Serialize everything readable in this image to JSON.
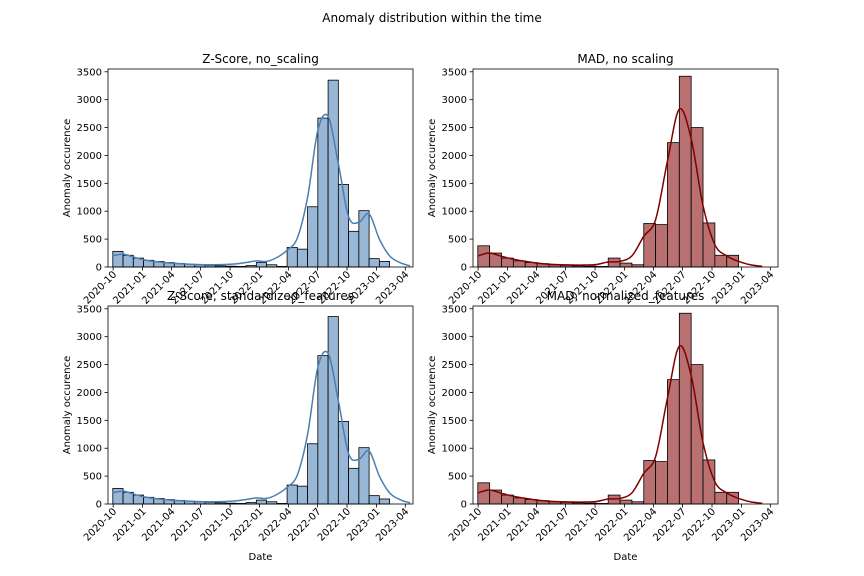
{
  "figure": {
    "suptitle": "Anomaly distribution within the time"
  },
  "chart_data": [
    {
      "type": "bar",
      "title": "Z-Score, no_scaling",
      "xlabel": "",
      "ylabel": "Anomaly occurence",
      "x_range": [
        "2020-09-15",
        "2023-04-25"
      ],
      "ylim": [
        0,
        3550
      ],
      "yticks": [
        0,
        500,
        1000,
        1500,
        2000,
        2500,
        3000,
        3500
      ],
      "xticks": [
        "2020-10",
        "2021-01",
        "2021-04",
        "2021-07",
        "2021-10",
        "2022-01",
        "2022-04",
        "2022-07",
        "2022-10",
        "2023-01",
        "2023-04"
      ],
      "bin_edges": [
        "2020-09-30",
        "2020-11-01",
        "2020-12-03",
        "2021-01-04",
        "2021-02-05",
        "2021-03-09",
        "2021-04-10",
        "2021-05-12",
        "2021-06-13",
        "2021-07-15",
        "2021-08-16",
        "2021-09-17",
        "2021-10-19",
        "2021-11-20",
        "2021-12-22",
        "2022-01-23",
        "2022-02-24",
        "2022-03-28",
        "2022-04-29",
        "2022-05-31",
        "2022-07-02",
        "2022-08-03",
        "2022-09-04",
        "2022-10-06",
        "2022-11-07",
        "2022-12-09",
        "2023-01-10",
        "2023-02-11",
        "2023-03-15",
        "2023-04-16"
      ],
      "values": [
        280,
        210,
        160,
        120,
        100,
        80,
        65,
        50,
        40,
        30,
        20,
        15,
        10,
        25,
        80,
        40,
        10,
        350,
        320,
        1080,
        2670,
        3350,
        1480,
        640,
        1010,
        150,
        100,
        0,
        0
      ],
      "kde": [
        200,
        230,
        180,
        130,
        100,
        80,
        65,
        55,
        45,
        40,
        40,
        45,
        55,
        80,
        110,
        100,
        170,
        300,
        520,
        1250,
        2450,
        2700,
        1850,
        900,
        800,
        950,
        500,
        200,
        80,
        20
      ],
      "color": "#4a7fb0",
      "fill": "#98b7d6"
    },
    {
      "type": "bar",
      "title": "MAD, no scaling",
      "xlabel": "",
      "ylabel": "Anomaly occurence",
      "x_range": [
        "2020-09-15",
        "2023-04-25"
      ],
      "ylim": [
        0,
        3550
      ],
      "yticks": [
        0,
        500,
        1000,
        1500,
        2000,
        2500,
        3000,
        3500
      ],
      "xticks": [
        "2020-10",
        "2021-01",
        "2021-04",
        "2021-07",
        "2021-10",
        "2022-01",
        "2022-04",
        "2022-07",
        "2022-10",
        "2023-01",
        "2023-04"
      ],
      "bin_edges": [
        "2020-09-30",
        "2020-11-06",
        "2020-12-13",
        "2021-01-19",
        "2021-02-25",
        "2021-04-03",
        "2021-05-10",
        "2021-06-16",
        "2021-07-23",
        "2021-08-29",
        "2021-10-05",
        "2021-11-11",
        "2021-12-18",
        "2022-01-24",
        "2022-03-02",
        "2022-04-08",
        "2022-05-15",
        "2022-06-21",
        "2022-07-28",
        "2022-09-03",
        "2022-10-10",
        "2022-11-16",
        "2022-12-23",
        "2023-01-29",
        "2023-03-07"
      ],
      "values": [
        380,
        250,
        160,
        110,
        80,
        60,
        40,
        30,
        20,
        15,
        10,
        160,
        70,
        40,
        780,
        760,
        2230,
        3420,
        2500,
        790,
        210,
        210,
        0,
        0
      ],
      "kde": [
        200,
        250,
        190,
        140,
        100,
        70,
        50,
        40,
        35,
        35,
        45,
        90,
        100,
        200,
        550,
        850,
        1900,
        2830,
        2300,
        1100,
        400,
        200,
        100,
        40,
        10
      ],
      "color": "#800000",
      "fill": "#b87070"
    },
    {
      "type": "bar",
      "title": "Z-Score, standardized_features",
      "xlabel": "Date",
      "ylabel": "Anomaly occurence",
      "x_range": [
        "2020-09-15",
        "2023-04-25"
      ],
      "ylim": [
        0,
        3550
      ],
      "yticks": [
        0,
        500,
        1000,
        1500,
        2000,
        2500,
        3000,
        3500
      ],
      "xticks": [
        "2020-10",
        "2021-01",
        "2021-04",
        "2021-07",
        "2021-10",
        "2022-01",
        "2022-04",
        "2022-07",
        "2022-10",
        "2023-01",
        "2023-04"
      ],
      "bin_edges": [
        "2020-09-30",
        "2020-11-01",
        "2020-12-03",
        "2021-01-04",
        "2021-02-05",
        "2021-03-09",
        "2021-04-10",
        "2021-05-12",
        "2021-06-13",
        "2021-07-15",
        "2021-08-16",
        "2021-09-17",
        "2021-10-19",
        "2021-11-20",
        "2021-12-22",
        "2022-01-23",
        "2022-02-24",
        "2022-03-28",
        "2022-04-29",
        "2022-05-31",
        "2022-07-02",
        "2022-08-03",
        "2022-09-04",
        "2022-10-06",
        "2022-11-07",
        "2022-12-09",
        "2023-01-10",
        "2023-02-11",
        "2023-03-15",
        "2023-04-16"
      ],
      "values": [
        280,
        210,
        160,
        120,
        100,
        80,
        65,
        50,
        40,
        30,
        20,
        15,
        10,
        25,
        70,
        40,
        10,
        340,
        320,
        1080,
        2660,
        3360,
        1480,
        640,
        1010,
        150,
        90,
        0,
        0
      ],
      "kde": [
        200,
        230,
        180,
        130,
        100,
        80,
        65,
        55,
        45,
        40,
        40,
        45,
        55,
        80,
        110,
        100,
        170,
        300,
        520,
        1250,
        2450,
        2700,
        1850,
        900,
        800,
        950,
        500,
        200,
        80,
        20
      ],
      "color": "#4a7fb0",
      "fill": "#98b7d6"
    },
    {
      "type": "bar",
      "title": "MAD, normalized_features",
      "xlabel": "Date",
      "ylabel": "Anomaly occurence",
      "x_range": [
        "2020-09-15",
        "2023-04-25"
      ],
      "ylim": [
        0,
        3550
      ],
      "yticks": [
        0,
        500,
        1000,
        1500,
        2000,
        2500,
        3000,
        3500
      ],
      "xticks": [
        "2020-10",
        "2021-01",
        "2021-04",
        "2021-07",
        "2021-10",
        "2022-01",
        "2022-04",
        "2022-07",
        "2022-10",
        "2023-01",
        "2023-04"
      ],
      "bin_edges": [
        "2020-09-30",
        "2020-11-06",
        "2020-12-13",
        "2021-01-19",
        "2021-02-25",
        "2021-04-03",
        "2021-05-10",
        "2021-06-16",
        "2021-07-23",
        "2021-08-29",
        "2021-10-05",
        "2021-11-11",
        "2021-12-18",
        "2022-01-24",
        "2022-03-02",
        "2022-04-08",
        "2022-05-15",
        "2022-06-21",
        "2022-07-28",
        "2022-09-03",
        "2022-10-10",
        "2022-11-16",
        "2022-12-23",
        "2023-01-29",
        "2023-03-07"
      ],
      "values": [
        380,
        250,
        160,
        110,
        80,
        60,
        40,
        30,
        20,
        15,
        10,
        160,
        70,
        40,
        780,
        760,
        2230,
        3420,
        2500,
        790,
        210,
        210,
        0,
        0
      ],
      "kde": [
        200,
        250,
        190,
        140,
        100,
        70,
        50,
        40,
        35,
        35,
        45,
        90,
        100,
        200,
        550,
        850,
        1900,
        2830,
        2300,
        1100,
        400,
        200,
        100,
        40,
        10
      ],
      "color": "#800000",
      "fill": "#b87070"
    }
  ]
}
